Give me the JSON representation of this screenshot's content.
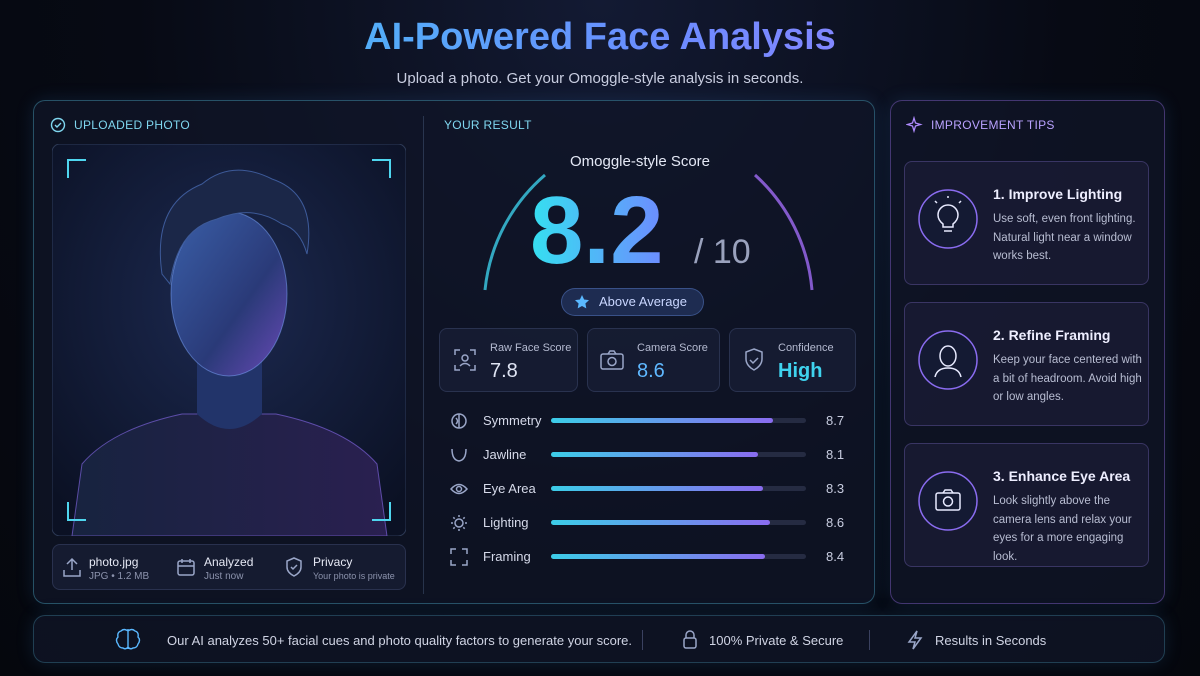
{
  "header": {
    "title": "AI-Powered Face Analysis",
    "subtitle": "Upload a photo. Get your Omoggle-style analysis in seconds."
  },
  "uploaded": {
    "heading": "UPLOADED PHOTO",
    "file": {
      "name": "photo.jpg",
      "meta": "JPG • 1.2 MB"
    },
    "status": {
      "label": "Analyzed",
      "detail": "Just now"
    },
    "privacy": {
      "label": "Privacy",
      "detail": "Your photo is private"
    }
  },
  "result": {
    "heading": "YOUR RESULT",
    "score_label": "Omoggle-style Score",
    "score": 8.2,
    "out_of": "/ 10",
    "badge": "Above Average",
    "stats": [
      {
        "label": "Raw Face Score",
        "value": 7.8
      },
      {
        "label": "Camera Score",
        "value": 8.6
      },
      {
        "label": "Confidence",
        "value": "High"
      }
    ],
    "metrics": [
      {
        "name": "Symmetry",
        "value": 8.7
      },
      {
        "name": "Jawline",
        "value": 8.1
      },
      {
        "name": "Eye Area",
        "value": 8.3
      },
      {
        "name": "Lighting",
        "value": 8.6
      },
      {
        "name": "Framing",
        "value": 8.4
      }
    ]
  },
  "tips": {
    "heading": "IMPROVEMENT TIPS",
    "items": [
      {
        "title": "1. Improve Lighting",
        "text": "Use soft, even front lighting. Natural light near a window works best."
      },
      {
        "title": "2. Refine Framing",
        "text": "Keep your face centered with a bit of headroom. Avoid high or low angles."
      },
      {
        "title": "3. Enhance Eye Area",
        "text": "Look slightly above the camera lens and relax your eyes for a more engaging look."
      }
    ]
  },
  "footer": {
    "note": "Our AI analyzes 50+ facial cues and photo quality factors to generate your score.",
    "private": "100% Private & Secure",
    "speed": "Results in Seconds"
  }
}
